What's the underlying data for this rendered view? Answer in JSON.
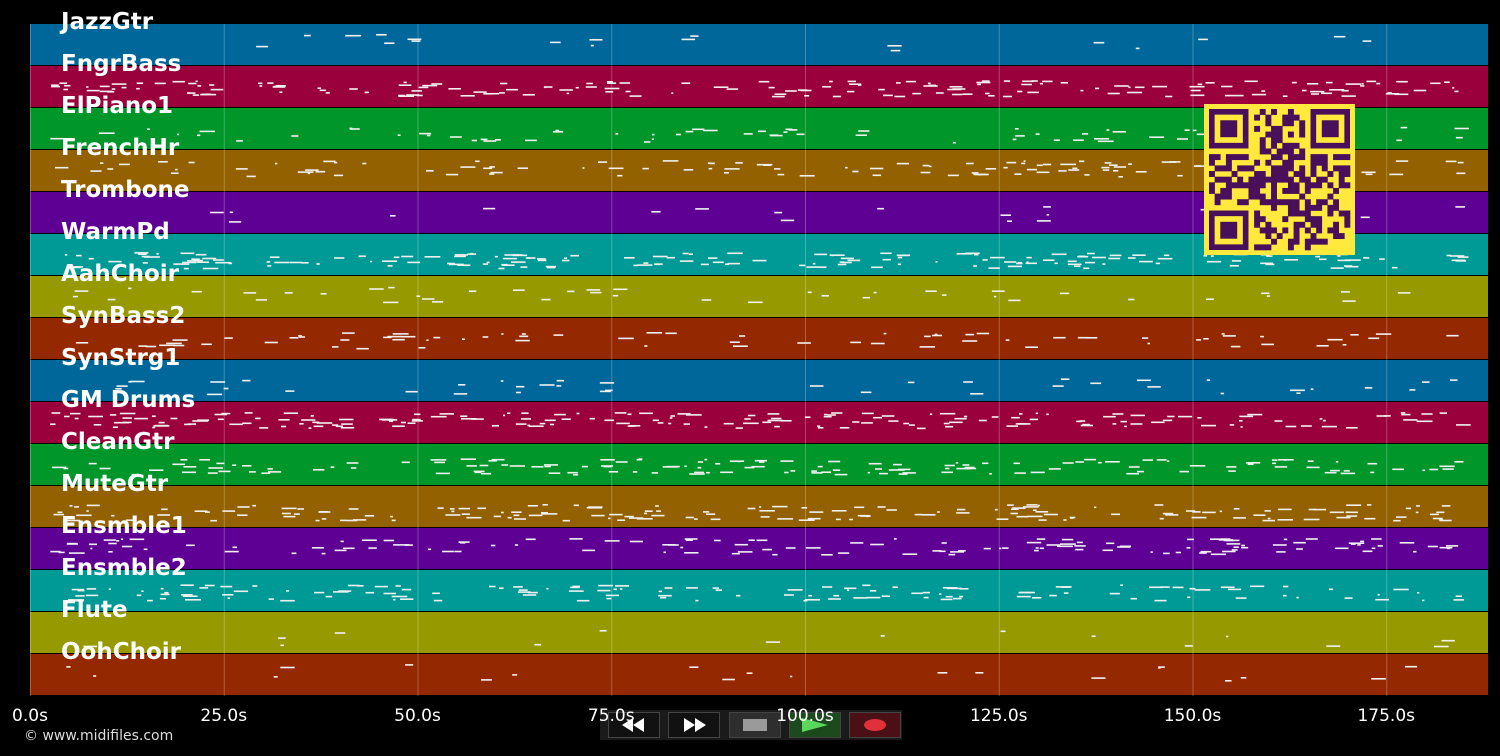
{
  "lanes": [
    {
      "name": "JazzGtr",
      "color": "#00679a"
    },
    {
      "name": "FngrBass",
      "color": "#9a003c"
    },
    {
      "name": "ElPiano1",
      "color": "#00962a"
    },
    {
      "name": "FrenchHr",
      "color": "#946100"
    },
    {
      "name": "Trombone",
      "color": "#5f0094"
    },
    {
      "name": "WarmPd",
      "color": "#009a96"
    },
    {
      "name": "AahChoir",
      "color": "#969a00"
    },
    {
      "name": "SynBass2",
      "color": "#942800"
    },
    {
      "name": "SynStrg1",
      "color": "#00679a"
    },
    {
      "name": "GM Drums",
      "color": "#9a003c"
    },
    {
      "name": "CleanGtr",
      "color": "#00962a"
    },
    {
      "name": "MuteGtr",
      "color": "#946100"
    },
    {
      "name": "Ensmble1",
      "color": "#5f0094"
    },
    {
      "name": "Ensmble2",
      "color": "#009a96"
    },
    {
      "name": "Flute",
      "color": "#969a00"
    },
    {
      "name": "OohChoir",
      "color": "#942800"
    }
  ],
  "timeline": {
    "max_seconds": 188,
    "ticks": [
      "0.0s",
      "25.0s",
      "50.0s",
      "75.0s",
      "100.0s",
      "125.0s",
      "150.0s",
      "175.0s"
    ],
    "tick_values": [
      0,
      25,
      50,
      75,
      100,
      125,
      150,
      175
    ]
  },
  "transport": {
    "rewind": "rewind-icon",
    "fast_forward": "fast-forward-icon",
    "stop": "stop-icon",
    "play": "play-icon",
    "record": "record-icon",
    "play_color": "#5ad65a",
    "record_color": "#e0303a"
  },
  "qr_colors": {
    "fg": "#4a0f5a",
    "bg": "#ffe93d"
  },
  "copyright": "© www.midifiles.com"
}
